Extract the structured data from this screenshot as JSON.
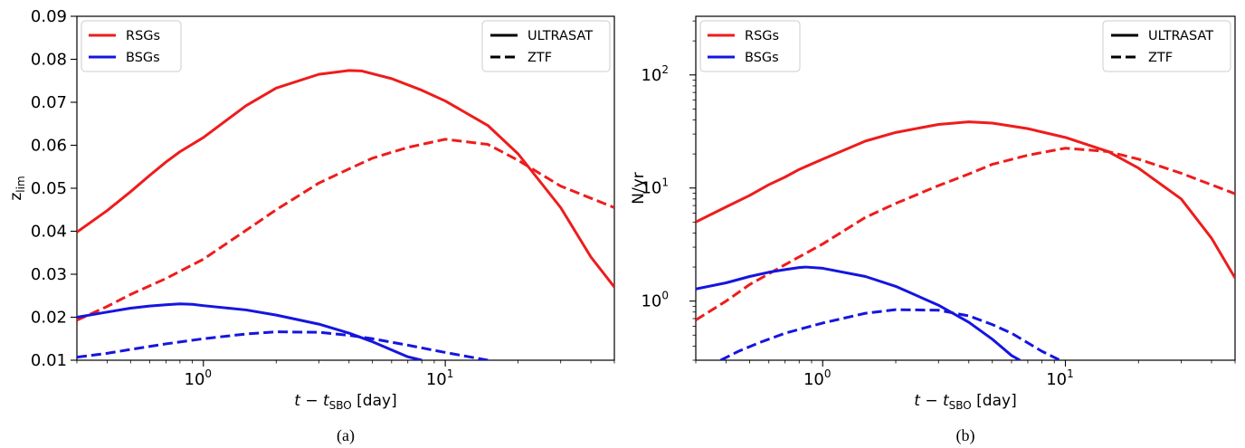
{
  "chart_data": [
    {
      "type": "line",
      "caption": "(a)",
      "xlabel": "t − t",
      "xlabel_sub": "SBO",
      "xlabel_unit": " [day]",
      "ylabel": "z",
      "ylabel_sub": "lim",
      "xscale": "log",
      "yscale": "linear",
      "xlim": [
        0.3,
        50
      ],
      "ylim": [
        0.01,
        0.09
      ],
      "yticks": [
        "0.01",
        "0.02",
        "0.03",
        "0.04",
        "0.05",
        "0.06",
        "0.07",
        "0.08",
        "0.09"
      ],
      "xticks_base": "10",
      "xticks_exp": [
        "0",
        "1"
      ],
      "grid": false,
      "legend_left": {
        "placement": "top-left",
        "entries": [
          {
            "label": "RSGs",
            "color": "#ee1c1c"
          },
          {
            "label": "BSGs",
            "color": "#1515e0"
          }
        ]
      },
      "legend_right": {
        "placement": "top-right",
        "entries": [
          {
            "label": "ULTRASAT",
            "style": "solid"
          },
          {
            "label": "ZTF",
            "style": "dashed"
          }
        ]
      },
      "series": [
        {
          "group": "RSGs",
          "instrument": "ULTRASAT",
          "color": "#ee1c1c",
          "style": "solid",
          "x": [
            0.3,
            0.4,
            0.5,
            0.6,
            0.7,
            0.8,
            1.0,
            1.5,
            2.0,
            3.0,
            4.0,
            4.5,
            6.0,
            8.0,
            10.0,
            15.0,
            20.0,
            30.0,
            40.0,
            50.0
          ],
          "y": [
            0.0398,
            0.0448,
            0.0492,
            0.053,
            0.0561,
            0.0585,
            0.0618,
            0.0692,
            0.0733,
            0.0765,
            0.0774,
            0.0773,
            0.0755,
            0.0728,
            0.0703,
            0.0646,
            0.058,
            0.0455,
            0.034,
            0.027
          ]
        },
        {
          "group": "RSGs",
          "instrument": "ZTF",
          "color": "#ee1c1c",
          "style": "dashed",
          "x": [
            0.3,
            0.4,
            0.5,
            0.7,
            1.0,
            1.5,
            2.0,
            3.0,
            4.0,
            5.0,
            7.0,
            10.0,
            15.0,
            20.0,
            30.0,
            50.0
          ],
          "y": [
            0.0193,
            0.0225,
            0.0253,
            0.029,
            0.0335,
            0.0402,
            0.045,
            0.0512,
            0.0545,
            0.057,
            0.0595,
            0.0614,
            0.0602,
            0.0565,
            0.0505,
            0.0455
          ]
        },
        {
          "group": "BSGs",
          "instrument": "ULTRASAT",
          "color": "#1515e0",
          "style": "solid",
          "x": [
            0.3,
            0.4,
            0.5,
            0.6,
            0.7,
            0.8,
            0.9,
            1.0,
            1.5,
            2.0,
            3.0,
            4.0,
            5.0,
            6.0,
            7.0,
            8.0
          ],
          "y": [
            0.02,
            0.0212,
            0.0221,
            0.0226,
            0.0229,
            0.0231,
            0.023,
            0.0227,
            0.0217,
            0.0205,
            0.0184,
            0.0163,
            0.0143,
            0.0124,
            0.0108,
            0.01
          ]
        },
        {
          "group": "BSGs",
          "instrument": "ZTF",
          "color": "#1515e0",
          "style": "dashed",
          "x": [
            0.3,
            0.4,
            0.5,
            0.7,
            1.0,
            1.5,
            2.0,
            3.0,
            4.0,
            5.0,
            7.0,
            10.0,
            15.0
          ],
          "y": [
            0.0107,
            0.0116,
            0.0125,
            0.0138,
            0.015,
            0.0161,
            0.0166,
            0.0165,
            0.0158,
            0.015,
            0.0135,
            0.0118,
            0.01
          ]
        }
      ]
    },
    {
      "type": "line",
      "caption": "(b)",
      "xlabel": "t − t",
      "xlabel_sub": "SBO",
      "xlabel_unit": " [day]",
      "ylabel": "N/yr",
      "xscale": "log",
      "yscale": "log",
      "xlim": [
        0.3,
        50
      ],
      "ylim": [
        0.3,
        330
      ],
      "yticks_base": "10",
      "yticks_exp": [
        "0",
        "1",
        "2"
      ],
      "xticks_base": "10",
      "xticks_exp": [
        "0",
        "1"
      ],
      "grid": false,
      "legend_left": {
        "placement": "top-left",
        "entries": [
          {
            "label": "RSGs",
            "color": "#ee1c1c"
          },
          {
            "label": "BSGs",
            "color": "#1515e0"
          }
        ]
      },
      "legend_right": {
        "placement": "top-right",
        "entries": [
          {
            "label": "ULTRASAT",
            "style": "solid"
          },
          {
            "label": "ZTF",
            "style": "dashed"
          }
        ]
      },
      "series": [
        {
          "group": "RSGs",
          "instrument": "ULTRASAT",
          "color": "#ee1c1c",
          "style": "solid",
          "x": [
            0.3,
            0.4,
            0.5,
            0.6,
            0.7,
            0.8,
            1.0,
            1.5,
            2.0,
            3.0,
            4.0,
            5.0,
            7.0,
            10.0,
            15.0,
            20.0,
            30.0,
            40.0,
            50.0
          ],
          "y": [
            5.0,
            6.8,
            8.6,
            10.7,
            12.5,
            14.6,
            18.0,
            26.0,
            31.0,
            36.5,
            38.5,
            37.5,
            33.5,
            28.0,
            21.0,
            15.0,
            8.0,
            3.6,
            1.6
          ]
        },
        {
          "group": "RSGs",
          "instrument": "ZTF",
          "color": "#ee1c1c",
          "style": "dashed",
          "x": [
            0.3,
            0.4,
            0.5,
            0.7,
            1.0,
            1.5,
            2.0,
            3.0,
            4.0,
            5.0,
            7.0,
            10.0,
            15.0,
            20.0,
            30.0,
            50.0
          ],
          "y": [
            0.68,
            1.0,
            1.4,
            2.1,
            3.2,
            5.5,
            7.3,
            10.5,
            13.3,
            16.2,
            19.5,
            22.5,
            21.0,
            18.0,
            13.5,
            8.9
          ]
        },
        {
          "group": "BSGs",
          "instrument": "ULTRASAT",
          "color": "#1515e0",
          "style": "solid",
          "x": [
            0.3,
            0.4,
            0.5,
            0.6,
            0.7,
            0.8,
            0.85,
            1.0,
            1.5,
            2.0,
            3.0,
            4.0,
            5.0,
            6.0,
            6.5
          ],
          "y": [
            1.28,
            1.45,
            1.65,
            1.8,
            1.9,
            1.98,
            2.0,
            1.95,
            1.65,
            1.35,
            0.92,
            0.65,
            0.46,
            0.33,
            0.3
          ]
        },
        {
          "group": "BSGs",
          "instrument": "ZTF",
          "color": "#1515e0",
          "style": "dashed",
          "x": [
            0.38,
            0.45,
            0.55,
            0.7,
            1.0,
            1.5,
            2.0,
            3.0,
            4.0,
            5.0,
            6.0,
            8.0,
            9.5
          ],
          "y": [
            0.3,
            0.36,
            0.43,
            0.52,
            0.64,
            0.78,
            0.84,
            0.83,
            0.74,
            0.62,
            0.52,
            0.36,
            0.3
          ]
        }
      ]
    }
  ]
}
